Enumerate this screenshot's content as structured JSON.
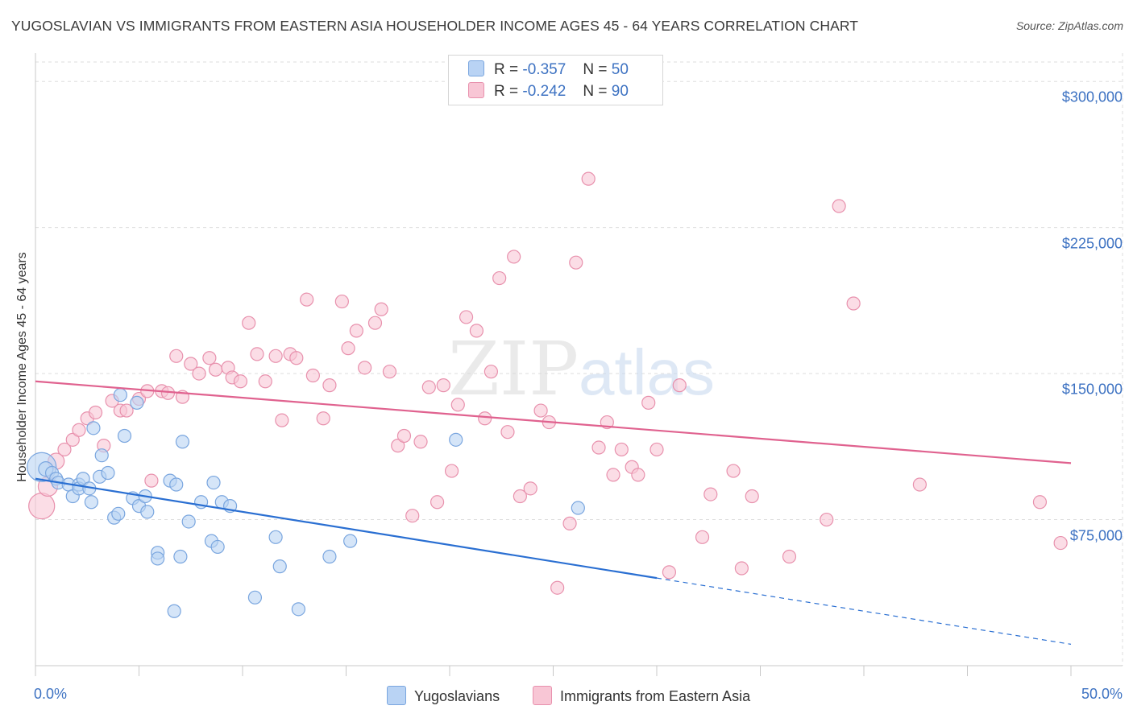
{
  "title": "YUGOSLAVIAN VS IMMIGRANTS FROM EASTERN ASIA HOUSEHOLDER INCOME AGES 45 - 64 YEARS CORRELATION CHART",
  "source": "Source: ZipAtlas.com",
  "legend_top": {
    "rows": [
      {
        "r_label": "R =",
        "r_value": "-0.357",
        "n_label": "N =",
        "n_value": "50"
      },
      {
        "r_label": "R =",
        "r_value": "-0.242",
        "n_label": "N =",
        "n_value": "90"
      }
    ]
  },
  "legend_bottom": {
    "series_a": "Yugoslavians",
    "series_b": "Immigrants from Eastern Asia"
  },
  "colors": {
    "blue_fill": "#b9d3f4",
    "blue_stroke": "#7aa6df",
    "blue_line": "#2a6fd2",
    "pink_fill": "#f8c6d5",
    "pink_stroke": "#e891ad",
    "pink_line": "#e0628f",
    "tick_label": "#3d72c2",
    "grid": "#dddddd"
  },
  "chart_data": {
    "type": "scatter",
    "title": "YUGOSLAVIAN VS IMMIGRANTS FROM EASTERN ASIA HOUSEHOLDER INCOME AGES 45 - 64 YEARS CORRELATION CHART",
    "xlabel": "",
    "ylabel": "Householder Income Ages 45 - 64 years",
    "xlim": [
      0,
      50
    ],
    "ylim": [
      0,
      310000
    ],
    "x_tick_labels": [
      "0.0%",
      "50.0%"
    ],
    "y_ticks": [
      {
        "value": 75000,
        "label": "$75,000"
      },
      {
        "value": 150000,
        "label": "$150,000"
      },
      {
        "value": 225000,
        "label": "$225,000"
      },
      {
        "value": 300000,
        "label": "$300,000"
      }
    ],
    "grid": true,
    "legend": "top-center",
    "series": [
      {
        "name": "Yugoslavians",
        "r": -0.357,
        "n": 50,
        "trend": {
          "x0": 0,
          "y0": 96000,
          "x1": 30,
          "y1": 45000,
          "dashed_to_x": 50,
          "dashed_to_y": 11000
        },
        "points": [
          [
            0.3,
            102000,
            18
          ],
          [
            0.5,
            101000,
            9
          ],
          [
            0.8,
            99000,
            8
          ],
          [
            1.0,
            96000,
            8
          ],
          [
            1.1,
            94000,
            8
          ],
          [
            1.6,
            93000,
            8
          ],
          [
            1.8,
            87000,
            8
          ],
          [
            2.1,
            93000,
            8
          ],
          [
            2.1,
            91000,
            8
          ],
          [
            2.3,
            96000,
            8
          ],
          [
            2.6,
            91000,
            8
          ],
          [
            2.7,
            84000,
            8
          ],
          [
            2.8,
            122000,
            8
          ],
          [
            3.1,
            97000,
            8
          ],
          [
            3.2,
            108000,
            8
          ],
          [
            3.5,
            99000,
            8
          ],
          [
            3.8,
            76000,
            8
          ],
          [
            4.0,
            78000,
            8
          ],
          [
            4.1,
            139000,
            8
          ],
          [
            4.3,
            118000,
            8
          ],
          [
            4.7,
            86000,
            8
          ],
          [
            4.9,
            135000,
            8
          ],
          [
            5.0,
            82000,
            8
          ],
          [
            5.3,
            87000,
            8
          ],
          [
            5.4,
            79000,
            8
          ],
          [
            5.9,
            58000,
            8
          ],
          [
            5.9,
            55000,
            8
          ],
          [
            6.5,
            95000,
            8
          ],
          [
            6.7,
            28000,
            8
          ],
          [
            6.8,
            93000,
            8
          ],
          [
            7.0,
            56000,
            8
          ],
          [
            7.1,
            115000,
            8
          ],
          [
            7.4,
            74000,
            8
          ],
          [
            8.0,
            84000,
            8
          ],
          [
            8.5,
            64000,
            8
          ],
          [
            8.6,
            94000,
            8
          ],
          [
            8.8,
            61000,
            8
          ],
          [
            9.0,
            84000,
            8
          ],
          [
            9.4,
            82000,
            8
          ],
          [
            10.6,
            35000,
            8
          ],
          [
            11.6,
            66000,
            8
          ],
          [
            11.8,
            51000,
            8
          ],
          [
            12.7,
            29000,
            8
          ],
          [
            14.2,
            56000,
            8
          ],
          [
            15.2,
            64000,
            8
          ],
          [
            20.3,
            116000,
            8
          ],
          [
            26.2,
            81000,
            8
          ]
        ]
      },
      {
        "name": "Immigrants from Eastern Asia",
        "r": -0.242,
        "n": 90,
        "trend": {
          "x0": 0,
          "y0": 146000,
          "x1": 50,
          "y1": 104000
        },
        "points": [
          [
            0.3,
            82000,
            16
          ],
          [
            0.6,
            92000,
            12
          ],
          [
            1.0,
            105000,
            10
          ],
          [
            1.4,
            111000,
            8
          ],
          [
            1.8,
            116000,
            8
          ],
          [
            2.1,
            121000,
            8
          ],
          [
            2.5,
            127000,
            8
          ],
          [
            2.9,
            130000,
            8
          ],
          [
            3.3,
            113000,
            8
          ],
          [
            3.7,
            136000,
            8
          ],
          [
            4.1,
            131000,
            8
          ],
          [
            4.4,
            131000,
            8
          ],
          [
            5.0,
            137000,
            8
          ],
          [
            5.4,
            141000,
            8
          ],
          [
            5.6,
            95000,
            8
          ],
          [
            6.1,
            141000,
            8
          ],
          [
            6.4,
            140000,
            8
          ],
          [
            6.8,
            159000,
            8
          ],
          [
            7.1,
            138000,
            8
          ],
          [
            7.5,
            155000,
            8
          ],
          [
            7.9,
            150000,
            8
          ],
          [
            8.4,
            158000,
            8
          ],
          [
            8.7,
            152000,
            8
          ],
          [
            9.3,
            153000,
            8
          ],
          [
            9.5,
            148000,
            8
          ],
          [
            9.9,
            146000,
            8
          ],
          [
            10.3,
            176000,
            8
          ],
          [
            10.7,
            160000,
            8
          ],
          [
            11.1,
            146000,
            8
          ],
          [
            11.6,
            159000,
            8
          ],
          [
            11.9,
            126000,
            8
          ],
          [
            12.3,
            160000,
            8
          ],
          [
            12.6,
            158000,
            8
          ],
          [
            13.1,
            188000,
            8
          ],
          [
            13.4,
            149000,
            8
          ],
          [
            13.9,
            127000,
            8
          ],
          [
            14.2,
            144000,
            8
          ],
          [
            14.8,
            187000,
            8
          ],
          [
            15.1,
            163000,
            8
          ],
          [
            15.5,
            172000,
            8
          ],
          [
            15.9,
            153000,
            8
          ],
          [
            16.4,
            176000,
            8
          ],
          [
            16.7,
            183000,
            8
          ],
          [
            17.1,
            151000,
            8
          ],
          [
            17.5,
            113000,
            8
          ],
          [
            17.8,
            118000,
            8
          ],
          [
            18.2,
            77000,
            8
          ],
          [
            18.6,
            115000,
            8
          ],
          [
            19.0,
            143000,
            8
          ],
          [
            19.4,
            84000,
            8
          ],
          [
            19.7,
            144000,
            8
          ],
          [
            20.1,
            100000,
            8
          ],
          [
            20.4,
            134000,
            8
          ],
          [
            20.8,
            179000,
            8
          ],
          [
            21.3,
            172000,
            8
          ],
          [
            21.7,
            127000,
            8
          ],
          [
            22.0,
            151000,
            8
          ],
          [
            22.4,
            199000,
            8
          ],
          [
            22.8,
            120000,
            8
          ],
          [
            23.1,
            210000,
            8
          ],
          [
            23.4,
            87000,
            8
          ],
          [
            23.9,
            91000,
            8
          ],
          [
            24.4,
            131000,
            8
          ],
          [
            24.8,
            125000,
            8
          ],
          [
            25.2,
            40000,
            8
          ],
          [
            25.8,
            73000,
            8
          ],
          [
            26.1,
            207000,
            8
          ],
          [
            26.7,
            250000,
            8
          ],
          [
            27.2,
            112000,
            8
          ],
          [
            27.6,
            125000,
            8
          ],
          [
            27.9,
            98000,
            8
          ],
          [
            28.3,
            111000,
            8
          ],
          [
            28.8,
            102000,
            8
          ],
          [
            29.1,
            98000,
            8
          ],
          [
            29.6,
            135000,
            8
          ],
          [
            30.0,
            111000,
            8
          ],
          [
            30.6,
            48000,
            8
          ],
          [
            31.1,
            144000,
            8
          ],
          [
            32.2,
            66000,
            8
          ],
          [
            32.6,
            88000,
            8
          ],
          [
            33.7,
            100000,
            8
          ],
          [
            34.1,
            50000,
            8
          ],
          [
            34.6,
            87000,
            8
          ],
          [
            36.4,
            56000,
            8
          ],
          [
            38.2,
            75000,
            8
          ],
          [
            38.8,
            236000,
            8
          ],
          [
            39.5,
            186000,
            8
          ],
          [
            42.7,
            93000,
            8
          ],
          [
            48.5,
            84000,
            8
          ],
          [
            49.5,
            63000,
            8
          ]
        ]
      }
    ]
  }
}
